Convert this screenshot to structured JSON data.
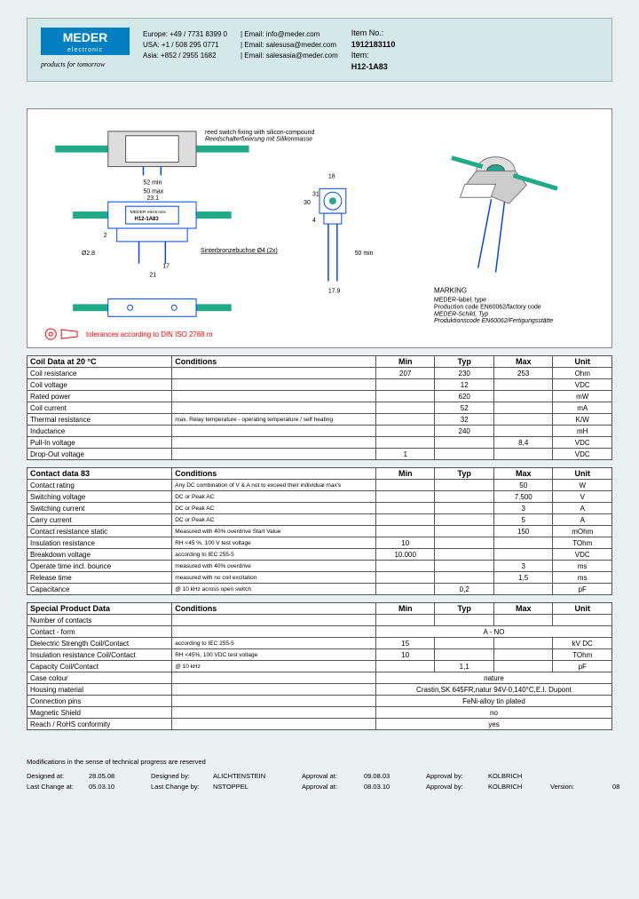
{
  "header": {
    "logo_text": "MEDER",
    "logo_sub": "electronic",
    "tagline": "products for tomorrow",
    "contacts": {
      "europe_phone": "Europe: +49 / 7731 8399 0",
      "usa_phone": "USA: +1 / 508 295 0771",
      "asia_phone": "Asia: +852 / 2955 1682",
      "europe_email": "| Email: info@meder.com",
      "usa_email": "| Email: salesusa@meder.com",
      "asia_email": "| Email: salesasia@meder.com"
    },
    "item": {
      "item_no_label": "Item No.:",
      "item_no": "1912183110",
      "item_label": "Item:",
      "item": "H12-1A83"
    }
  },
  "diagram": {
    "reed_label": "reed switch fixing with silicon-compound",
    "reed_label2": "Reedschalterfixierung mit Silikonmasse",
    "tolerances": "tolerances according to DIN ISO 2768 m",
    "marking_title": "MARKING",
    "marking1": "MEDER-label, type",
    "marking2": "Production code EN60062/factory code",
    "marking3": "MEDER-Schild, Typ",
    "marking4": "Produktionscode EN60062/Fertigungsstätte",
    "relay_label1": "MEDER electronic",
    "relay_label2": "H12-1A83",
    "dim_52": "52 min",
    "dim_50": "50 max",
    "dim_231": "23.1",
    "dim_2": "2",
    "dim_21": "21",
    "dim_17": "17",
    "dim_sinterbronze": "Sinterbronzebuchse Ø4 (2x)",
    "dim_18": "18",
    "dim_30": "30",
    "dim_31": "31",
    "dim_50b": "50 min",
    "dim_4": "4",
    "dim_179": "17.9",
    "dim_phi28": "Ø2.8"
  },
  "tables": {
    "headers": {
      "conditions": "Conditions",
      "min": "Min",
      "typ": "Typ",
      "max": "Max",
      "unit": "Unit"
    },
    "coil": {
      "title": "Coil Data at 20 °C",
      "rows": [
        {
          "label": "Coil resistance",
          "cond": "",
          "min": "207",
          "typ": "230",
          "max": "253",
          "unit": "Ohm"
        },
        {
          "label": "Coil voltage",
          "cond": "",
          "min": "",
          "typ": "12",
          "max": "",
          "unit": "VDC"
        },
        {
          "label": "Rated power",
          "cond": "",
          "min": "",
          "typ": "620",
          "max": "",
          "unit": "mW"
        },
        {
          "label": "Coil current",
          "cond": "",
          "min": "",
          "typ": "52",
          "max": "",
          "unit": "mA"
        },
        {
          "label": "Thermal resistance",
          "cond": "max. Relay temperature - operating temperature / self heating",
          "min": "",
          "typ": "32",
          "max": "",
          "unit": "K/W"
        },
        {
          "label": "Inductance",
          "cond": "",
          "min": "",
          "typ": "240",
          "max": "",
          "unit": "mH"
        },
        {
          "label": "Pull-In voltage",
          "cond": "",
          "min": "",
          "typ": "",
          "max": "8,4",
          "unit": "VDC"
        },
        {
          "label": "Drop-Out voltage",
          "cond": "",
          "min": "1",
          "typ": "",
          "max": "",
          "unit": "VDC"
        }
      ]
    },
    "contact": {
      "title": "Contact data  83",
      "rows": [
        {
          "label": "Contact rating",
          "cond": "Any DC combination of V & A not to exceed their individual max's",
          "min": "",
          "typ": "",
          "max": "50",
          "unit": "W"
        },
        {
          "label": "Switching voltage",
          "cond": "DC or Peak AC",
          "min": "",
          "typ": "",
          "max": "7.500",
          "unit": "V"
        },
        {
          "label": "Switching current",
          "cond": "DC or Peak AC",
          "min": "",
          "typ": "",
          "max": "3",
          "unit": "A"
        },
        {
          "label": "Carry current",
          "cond": "DC or Peak AC",
          "min": "",
          "typ": "",
          "max": "5",
          "unit": "A"
        },
        {
          "label": "Contact resistance static",
          "cond": "Measured with 40% overdrive Start Value",
          "min": "",
          "typ": "",
          "max": "150",
          "unit": "mOhm"
        },
        {
          "label": "Insulation resistance",
          "cond": "RH <45 %, 100 V test voltage",
          "min": "10",
          "typ": "",
          "max": "",
          "unit": "TOhm"
        },
        {
          "label": "Breakdown voltage",
          "cond": "according to IEC 255-5",
          "min": "10.000",
          "typ": "",
          "max": "",
          "unit": "VDC"
        },
        {
          "label": "Operate time incl. bounce",
          "cond": "measured with 40% overdrive",
          "min": "",
          "typ": "",
          "max": "3",
          "unit": "ms"
        },
        {
          "label": "Release time",
          "cond": "measured with no coil excitation",
          "min": "",
          "typ": "",
          "max": "1,5",
          "unit": "ms"
        },
        {
          "label": "Capacitance",
          "cond": "@ 10 kHz across open switch",
          "min": "",
          "typ": "0,2",
          "max": "",
          "unit": "pF"
        }
      ]
    },
    "special": {
      "title": "Special Product Data",
      "rows": [
        {
          "label": "Number of contacts",
          "cond": "",
          "min": "",
          "typ": "",
          "max": "",
          "unit": "",
          "span": ""
        },
        {
          "label": "Contact - form",
          "cond": "",
          "span": "A - NO"
        },
        {
          "label": "Dielectric Strength Coil/Contact",
          "cond": "according to IEC 255-5",
          "min": "15",
          "typ": "",
          "max": "",
          "unit": "kV DC"
        },
        {
          "label": "Insulation resistance Coil/Contact",
          "cond": "RH <45%, 100 VDC test voltage",
          "min": "10",
          "typ": "",
          "max": "",
          "unit": "TOhm"
        },
        {
          "label": "Capacity Coil/Contact",
          "cond": "@ 10 kHz",
          "min": "",
          "typ": "1,1",
          "max": "",
          "unit": "pF"
        },
        {
          "label": "Case colour",
          "cond": "",
          "span": "nature"
        },
        {
          "label": "Housing material",
          "cond": "",
          "span": "Crastin,SK 645FR,natur 94V-0,140°C,E.I. Dupont"
        },
        {
          "label": "Connection pins",
          "cond": "",
          "span": "FeNi-alloy tin plated"
        },
        {
          "label": "Magnetic Shield",
          "cond": "",
          "span": "no"
        },
        {
          "label": "Reach / RoHS conformity",
          "cond": "",
          "span": "yes"
        }
      ]
    }
  },
  "footer": {
    "note": "Modifications in the sense of technical progress are reserved",
    "designed_at_label": "Designed at:",
    "designed_at": "28.05.08",
    "designed_by_label": "Designed by:",
    "designed_by": "ALICHTENSTEIN",
    "approval_at_label": "Approval at:",
    "approval_at": "09.08.03",
    "approval_by_label": "Approval by:",
    "approval_by": "KOLBRICH",
    "lastchange_at_label": "Last Change at:",
    "lastchange_at": "05.03.10",
    "lastchange_by_label": "Last Change by:",
    "lastchange_by": "NSTOPPEL",
    "approval_at2": "08.03.10",
    "approval_by2": "KOLBRICH",
    "version_label": "Version:",
    "version": "08"
  }
}
